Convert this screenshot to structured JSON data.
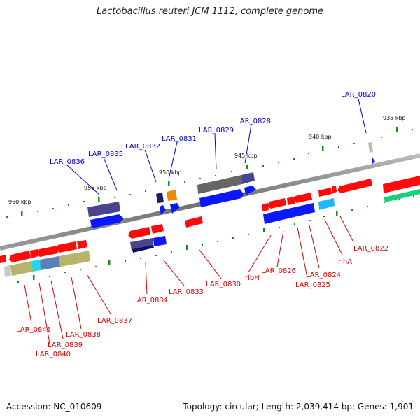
{
  "title": "Lactobacillus reuteri JCM 1112, complete genome",
  "footer": {
    "accession": "Accession: NC_010609",
    "summary": "Topology: circular; Length: 2,039,414 bp; Genes: 1,901"
  },
  "colors": {
    "forward_label": "#0000cc",
    "reverse_label": "#dd0000",
    "backbone": "#777777",
    "tick": "#1a8a1a"
  },
  "scale_labels": [
    "935 kbp",
    "940 kbp",
    "945 kbp",
    "950 kbp",
    "955 kbp",
    "960 kbp"
  ],
  "forward_gene_labels": [
    "LAR_0820",
    "LAR_0828",
    "LAR_0829",
    "LAR_0831",
    "LAR_0832",
    "LAR_0835",
    "LAR_0836"
  ],
  "reverse_gene_labels": [
    "LAR_0822",
    "rihA",
    "LAR_0824",
    "LAR_0825",
    "LAR_0826",
    "ribH",
    "LAR_0830",
    "LAR_0833",
    "LAR_0834",
    "LAR_0837",
    "LAR_0838",
    "LAR_0839",
    "LAR_0840",
    "LAR_0841"
  ]
}
